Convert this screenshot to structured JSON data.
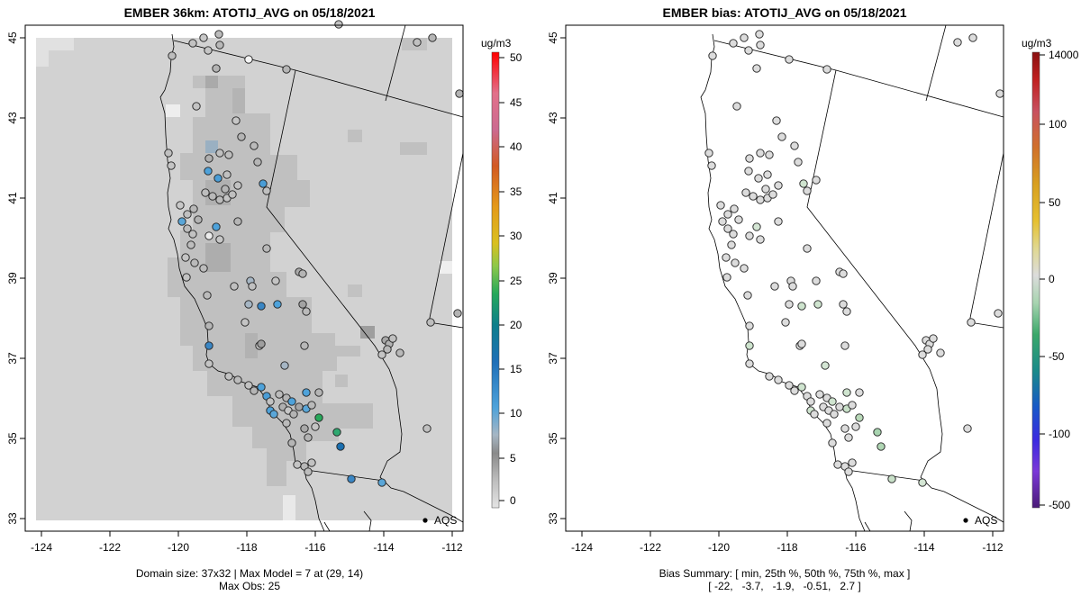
{
  "left": {
    "title": "EMBER 36km: ATOTIJ_AVG on 05/18/2021",
    "x_ticks": [
      "-124",
      "-122",
      "-120",
      "-118",
      "-116",
      "-114",
      "-112"
    ],
    "y_ticks": [
      "45",
      "43",
      "41",
      "39",
      "37",
      "35",
      "33"
    ],
    "colorbar_unit": "ug/m3",
    "colorbar_ticks": [
      "50",
      "45",
      "40",
      "35",
      "30",
      "25",
      "20",
      "15",
      "10",
      "5",
      "0"
    ],
    "aqs_label": "AQS",
    "caption_line1": "Domain size: 37x32 | Max Model = 7 at (29, 14)",
    "caption_line2": "Max Obs: 25"
  },
  "right": {
    "title": "EMBER bias: ATOTIJ_AVG on 05/18/2021",
    "x_ticks": [
      "-124",
      "-122",
      "-120",
      "-118",
      "-116",
      "-114",
      "-112"
    ],
    "y_ticks": [
      "45",
      "43",
      "41",
      "39",
      "37",
      "35",
      "33"
    ],
    "colorbar_unit": "ug/m3",
    "colorbar_ticks": [
      "14000",
      "100",
      "50",
      "0",
      "-50",
      "-100",
      "-500"
    ],
    "aqs_label": "AQS",
    "caption_line1": "Bias Summary: [ min, 25th %, 50th %, 75th %, max ]",
    "caption_line2": "[ -22,   -3.7,   -1.9,   -0.51,   2.7 ]"
  }
}
